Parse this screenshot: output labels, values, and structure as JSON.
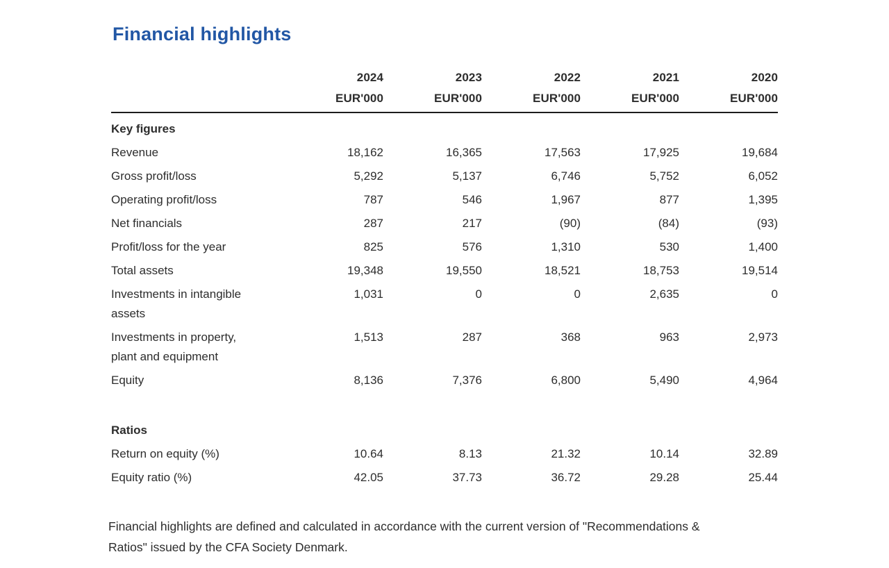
{
  "title": "Financial highlights",
  "colors": {
    "title": "#2257a5",
    "text": "#2d2d2d",
    "rule": "#1c1c1c"
  },
  "table": {
    "years": [
      "2024",
      "2023",
      "2022",
      "2021",
      "2020"
    ],
    "unit": "EUR'000",
    "sections": [
      {
        "name": "Key figures",
        "rows": [
          {
            "label": "Revenue",
            "values": [
              "18,162",
              "16,365",
              "17,563",
              "17,925",
              "19,684"
            ]
          },
          {
            "label": "Gross profit/loss",
            "values": [
              "5,292",
              "5,137",
              "6,746",
              "5,752",
              "6,052"
            ]
          },
          {
            "label": "Operating profit/loss",
            "values": [
              "787",
              "546",
              "1,967",
              "877",
              "1,395"
            ]
          },
          {
            "label": "Net financials",
            "values": [
              "287",
              "217",
              "(90)",
              "(84)",
              "(93)"
            ]
          },
          {
            "label": "Profit/loss for the year",
            "values": [
              "825",
              "576",
              "1,310",
              "530",
              "1,400"
            ]
          },
          {
            "label": "Total assets",
            "values": [
              "19,348",
              "19,550",
              "18,521",
              "18,753",
              "19,514"
            ]
          },
          {
            "label": "Investments in intangible\nassets",
            "values": [
              "1,031",
              "0",
              "0",
              "2,635",
              "0"
            ]
          },
          {
            "label": "Investments in property,\nplant and equipment",
            "values": [
              "1,513",
              "287",
              "368",
              "963",
              "2,973"
            ]
          },
          {
            "label": "Equity",
            "values": [
              "8,136",
              "7,376",
              "6,800",
              "5,490",
              "4,964"
            ]
          }
        ]
      },
      {
        "name": "Ratios",
        "rows": [
          {
            "label": "Return on equity (%)",
            "values": [
              "10.64",
              "8.13",
              "21.32",
              "10.14",
              "32.89"
            ]
          },
          {
            "label": "Equity ratio (%)",
            "values": [
              "42.05",
              "37.73",
              "36.72",
              "29.28",
              "25.44"
            ]
          }
        ]
      }
    ]
  },
  "footnote": "Financial highlights are defined and calculated in accordance with the current version of \"Recommendations &\nRatios\" issued by the CFA Society Denmark."
}
